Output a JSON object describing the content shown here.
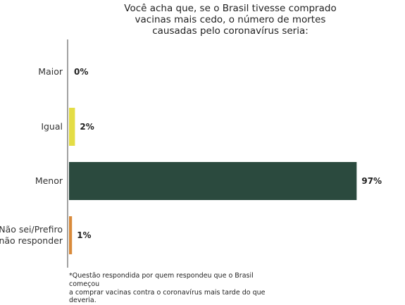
{
  "chart_data": {
    "type": "bar",
    "orientation": "horizontal",
    "title": "Você acha que, se o Brasil tivesse comprado vacinas mais cedo, o número de mortes causadas pelo coronavírus seria:",
    "title_lines": [
      "Você acha que, se o Brasil tivesse comprado",
      "vacinas mais cedo, o número de mortes",
      "causadas pelo coronavírus seria:"
    ],
    "categories": [
      {
        "lines": [
          "Maior"
        ]
      },
      {
        "lines": [
          "Igual"
        ]
      },
      {
        "lines": [
          "Menor"
        ]
      },
      {
        "lines": [
          "Não sei/Prefiro",
          "não responder"
        ]
      }
    ],
    "values": [
      0,
      2,
      97,
      1
    ],
    "value_labels": [
      "0%",
      "2%",
      "97%",
      "1%"
    ],
    "colors": [
      "#e4dd45",
      "#e4dd45",
      "#2b4a3e",
      "#d98a3a"
    ],
    "xlim": [
      0,
      100
    ],
    "grid": false,
    "legend": "none"
  },
  "footnote_lines": [
    "*Questão respondida por quem respondeu que o Brasil começou",
    "a comprar vacinas contra o coronavírus mais tarde do que",
    "deveria."
  ]
}
